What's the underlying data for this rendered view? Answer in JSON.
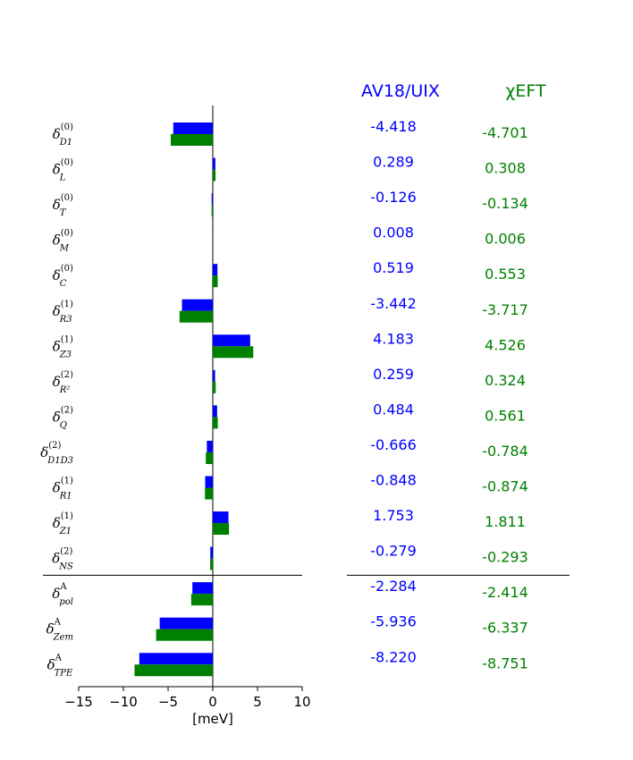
{
  "chart_data": {
    "type": "bar",
    "orientation": "horizontal",
    "categories": [
      {
        "base": "δ",
        "sub": "D1",
        "sup": "(0)"
      },
      {
        "base": "δ",
        "sub": "L",
        "sup": "(0)"
      },
      {
        "base": "δ",
        "sub": "T",
        "sup": "(0)"
      },
      {
        "base": "δ",
        "sub": "M",
        "sup": "(0)"
      },
      {
        "base": "δ",
        "sub": "C",
        "sup": "(0)"
      },
      {
        "base": "δ",
        "sub": "R3",
        "sup": "(1)"
      },
      {
        "base": "δ",
        "sub": "Z3",
        "sup": "(1)"
      },
      {
        "base": "δ",
        "sub": "R²",
        "sup": "(2)"
      },
      {
        "base": "δ",
        "sub": "Q",
        "sup": "(2)"
      },
      {
        "base": "δ",
        "sub": "D1D3",
        "sup": "(2)"
      },
      {
        "base": "δ",
        "sub": "R1",
        "sup": "(1)"
      },
      {
        "base": "δ",
        "sub": "Z1",
        "sup": "(1)"
      },
      {
        "base": "δ",
        "sub": "NS",
        "sup": "(2)"
      },
      {
        "base": "δ",
        "sub": "pol",
        "sup": "A"
      },
      {
        "base": "δ",
        "sub": "Zem",
        "sup": "A"
      },
      {
        "base": "δ",
        "sub": "TPE",
        "sup": "A"
      }
    ],
    "series": [
      {
        "name": "AV18/UIX",
        "color": "#0000ff",
        "values": [
          -4.418,
          0.289,
          -0.126,
          0.008,
          0.519,
          -3.442,
          4.183,
          0.259,
          0.484,
          -0.666,
          -0.848,
          1.753,
          -0.279,
          -2.284,
          -5.936,
          -8.22
        ],
        "labels": [
          "-4.418",
          "0.289",
          "-0.126",
          "0.008",
          "0.519",
          "-3.442",
          "4.183",
          "0.259",
          "0.484",
          "-0.666",
          "-0.848",
          "1.753",
          "-0.279",
          "-2.284",
          "-5.936",
          "-8.220"
        ]
      },
      {
        "name": "χEFT",
        "color": "#008000",
        "values": [
          -4.701,
          0.308,
          -0.134,
          0.006,
          0.553,
          -3.717,
          4.526,
          0.324,
          0.561,
          -0.784,
          -0.874,
          1.811,
          -0.293,
          -2.414,
          -6.337,
          -8.751
        ],
        "labels": [
          "-4.701",
          "0.308",
          "-0.134",
          "0.006",
          "0.553",
          "-3.717",
          "4.526",
          "0.324",
          "0.561",
          "-0.784",
          "-0.874",
          "1.811",
          "-0.293",
          "-2.414",
          "-6.337",
          "-8.751"
        ]
      }
    ],
    "xlabel": "[meV]",
    "xlim": [
      -15,
      10
    ],
    "xticks": [
      -15,
      -10,
      -5,
      0,
      5,
      10
    ],
    "xtick_labels": [
      "−15",
      "−10",
      "−5",
      "0",
      "5",
      "10"
    ],
    "separator_after_index": 12,
    "grid": false
  }
}
